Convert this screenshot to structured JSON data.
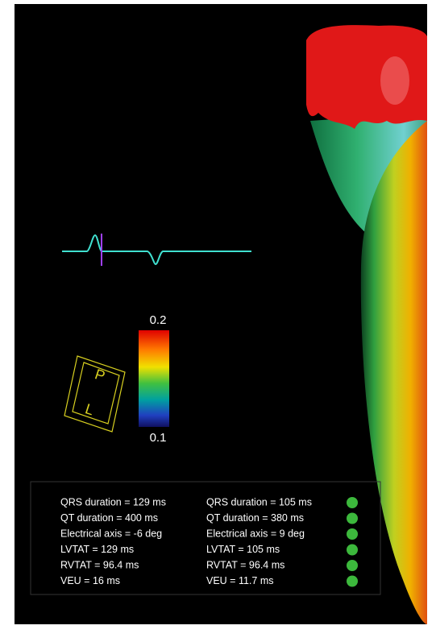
{
  "colorbar": {
    "max": "0.2",
    "min": "0.1"
  },
  "orientation": {
    "top_label": "P",
    "bottom_label": "L"
  },
  "stats": {
    "rows": [
      [
        "QRS duration = 129 ms",
        "QRS duration = 105 ms"
      ],
      [
        "QT duration = 400 ms",
        "QT duration = 380 ms"
      ],
      [
        "Electrical axis = -6 deg",
        "Electrical axis = 9 deg"
      ],
      [
        "LVTAT = 129 ms",
        "LVTAT = 105 ms"
      ],
      [
        "RVTAT = 96.4 ms",
        "RVTAT = 96.4 ms"
      ],
      [
        "VEU = 16 ms",
        "VEU = 11.7 ms"
      ]
    ]
  }
}
